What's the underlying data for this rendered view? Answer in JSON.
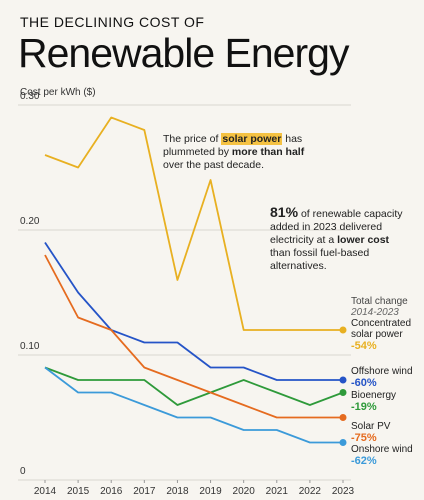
{
  "chart_data": {
    "type": "line",
    "kicker": "THE DECLINING COST OF",
    "title": "Renewable Energy",
    "y_label": "Cost per kWh ($)",
    "x": [
      2014,
      2015,
      2016,
      2017,
      2018,
      2019,
      2020,
      2021,
      2022,
      2023
    ],
    "xlim": [
      2014,
      2023
    ],
    "xticks": [
      2014,
      2015,
      2016,
      2017,
      2018,
      2019,
      2020,
      2021,
      2022,
      2023
    ],
    "ylim": [
      0,
      0.3
    ],
    "yticks": [
      0,
      {
        "value": 0.1,
        "label": "0.10"
      },
      {
        "value": 0.2,
        "label": "0.20"
      },
      {
        "value": 0.3,
        "label": "0.30"
      }
    ],
    "grid": true,
    "legend_header": [
      "Total change",
      "2014-2023"
    ],
    "series": [
      {
        "name": "Concentrated solar power",
        "color": "#e8b021",
        "change": "-54%",
        "values": [
          0.26,
          0.25,
          0.29,
          0.28,
          0.16,
          0.24,
          0.12,
          0.12,
          0.12,
          0.12
        ]
      },
      {
        "name": "Offshore wind",
        "color": "#2554c7",
        "change": "-60%",
        "values": [
          0.19,
          0.15,
          0.12,
          0.11,
          0.11,
          0.09,
          0.09,
          0.08,
          0.08,
          0.08
        ]
      },
      {
        "name": "Bioenergy",
        "color": "#2e9a3a",
        "change": "-19%",
        "values": [
          0.09,
          0.08,
          0.08,
          0.08,
          0.06,
          0.07,
          0.08,
          0.07,
          0.06,
          0.07
        ]
      },
      {
        "name": "Solar PV",
        "color": "#e56b1f",
        "change": "-75%",
        "values": [
          0.18,
          0.13,
          0.12,
          0.09,
          0.08,
          0.07,
          0.06,
          0.05,
          0.05,
          0.05
        ]
      },
      {
        "name": "Onshore wind",
        "color": "#3b9ad9",
        "change": "-62%",
        "values": [
          0.09,
          0.07,
          0.07,
          0.06,
          0.05,
          0.05,
          0.04,
          0.04,
          0.03,
          0.03
        ]
      }
    ],
    "annotations": [
      [
        "The price of ",
        "solar power",
        " has plummeted by ",
        "more than half",
        " over the past decade."
      ],
      [
        "81%",
        " of renewable capacity added in 2023 delivered electricity at a ",
        "lower cost",
        " than fossil fuel-based alternatives."
      ]
    ]
  }
}
